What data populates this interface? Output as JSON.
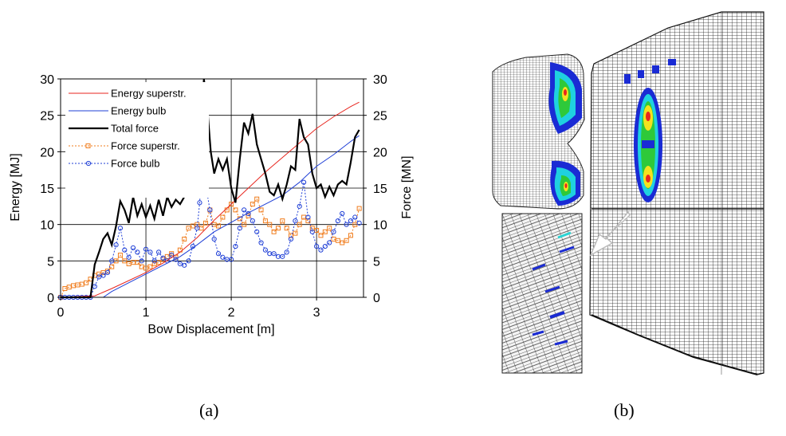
{
  "captions": {
    "a": "(a)",
    "b": "(b)"
  },
  "chart_data": {
    "type": "line",
    "xlabel": "Bow Displacement [m]",
    "ylabel": "Energy [MJ]",
    "y2label": "Force [MN]",
    "xlim": [
      0,
      3.55
    ],
    "ylim": [
      0,
      30
    ],
    "y2lim": [
      0,
      30
    ],
    "xticks": [
      0,
      1,
      2,
      3
    ],
    "yticks": [
      0,
      5,
      10,
      15,
      20,
      25,
      30
    ],
    "grid": true,
    "legend_position": "top-left",
    "series": [
      {
        "name": "Energy superstr.",
        "axis": "left",
        "color": "#e8261f",
        "style": "solid",
        "x": [
          0,
          0.4,
          0.6,
          0.8,
          1.0,
          1.2,
          1.4,
          1.6,
          1.8,
          2.0,
          2.2,
          2.4,
          2.6,
          2.8,
          3.0,
          3.2,
          3.4,
          3.5
        ],
        "y": [
          0,
          0.2,
          1.2,
          2.3,
          3.4,
          4.7,
          6.2,
          8.2,
          10.6,
          12.8,
          15.0,
          17.2,
          19.2,
          21.2,
          23.2,
          24.8,
          26.2,
          26.8
        ]
      },
      {
        "name": "Energy bulb",
        "axis": "left",
        "color": "#1f3fd6",
        "style": "solid",
        "x": [
          0,
          0.5,
          0.6,
          0.8,
          1.0,
          1.2,
          1.4,
          1.6,
          1.8,
          2.0,
          2.2,
          2.4,
          2.6,
          2.8,
          3.0,
          3.2,
          3.4,
          3.5
        ],
        "y": [
          0,
          0,
          0.8,
          2.0,
          3.2,
          4.4,
          5.6,
          7.2,
          9.0,
          10.3,
          11.6,
          12.8,
          14.0,
          15.8,
          18.0,
          19.6,
          21.4,
          22.2
        ]
      },
      {
        "name": "Total force",
        "axis": "right",
        "color": "#000000",
        "style": "solid",
        "x": [
          0,
          0.35,
          0.4,
          0.45,
          0.5,
          0.55,
          0.6,
          0.65,
          0.7,
          0.75,
          0.8,
          0.85,
          0.9,
          0.95,
          1.0,
          1.05,
          1.1,
          1.15,
          1.2,
          1.25,
          1.3,
          1.35,
          1.4,
          1.45,
          1.5,
          1.55,
          1.6,
          1.65,
          1.68,
          1.72,
          1.76,
          1.8,
          1.85,
          1.9,
          1.95,
          2.0,
          2.05,
          2.1,
          2.15,
          2.2,
          2.25,
          2.3,
          2.35,
          2.4,
          2.45,
          2.5,
          2.55,
          2.6,
          2.65,
          2.7,
          2.75,
          2.8,
          2.85,
          2.9,
          2.95,
          3.0,
          3.05,
          3.1,
          3.15,
          3.2,
          3.25,
          3.3,
          3.35,
          3.4,
          3.45,
          3.5
        ],
        "y": [
          0,
          0,
          4.5,
          6.2,
          8.0,
          8.8,
          7.2,
          9.8,
          13.2,
          12.0,
          10.2,
          13.8,
          11.2,
          12.8,
          11.0,
          12.6,
          10.8,
          13.4,
          11.2,
          13.8,
          12.4,
          13.4,
          12.8,
          13.8,
          14.2,
          14.6,
          17.8,
          24.0,
          30.0,
          26.0,
          20.0,
          17.0,
          19.0,
          17.5,
          19.0,
          15.0,
          13.0,
          19.0,
          24.0,
          22.5,
          25.2,
          21.0,
          19.0,
          17.0,
          14.5,
          14.0,
          15.5,
          13.5,
          15.5,
          18.0,
          17.5,
          24.5,
          22.0,
          21.0,
          17.0,
          15.0,
          15.5,
          13.8,
          15.2,
          14.0,
          15.5,
          16.0,
          15.5,
          18.5,
          22.0,
          23.0
        ]
      },
      {
        "name": "Force superstr.",
        "axis": "right",
        "color": "#f07d1e",
        "style": "dotted",
        "marker": "square",
        "x": [
          0,
          0.05,
          0.1,
          0.15,
          0.2,
          0.25,
          0.3,
          0.35,
          0.4,
          0.45,
          0.5,
          0.55,
          0.6,
          0.65,
          0.7,
          0.75,
          0.8,
          0.85,
          0.9,
          0.95,
          1.0,
          1.05,
          1.1,
          1.15,
          1.2,
          1.25,
          1.3,
          1.35,
          1.4,
          1.45,
          1.5,
          1.55,
          1.6,
          1.65,
          1.7,
          1.75,
          1.8,
          1.85,
          1.9,
          1.95,
          2.0,
          2.05,
          2.1,
          2.15,
          2.2,
          2.25,
          2.3,
          2.35,
          2.4,
          2.45,
          2.5,
          2.55,
          2.6,
          2.65,
          2.7,
          2.75,
          2.8,
          2.85,
          2.9,
          2.95,
          3.0,
          3.05,
          3.1,
          3.15,
          3.2,
          3.25,
          3.3,
          3.35,
          3.4,
          3.45,
          3.5
        ],
        "y": [
          0,
          1.2,
          1.4,
          1.6,
          1.7,
          1.8,
          2.0,
          2.5,
          3.0,
          3.2,
          3.4,
          3.6,
          4.2,
          5.0,
          5.8,
          5.0,
          4.6,
          4.8,
          4.8,
          4.2,
          4.0,
          4.2,
          4.6,
          4.8,
          5.2,
          5.6,
          6.0,
          5.5,
          6.5,
          8.0,
          9.5,
          9.8,
          10.0,
          9.5,
          10.2,
          12.0,
          10.0,
          9.8,
          11.0,
          12.0,
          12.8,
          12.0,
          10.8,
          10.0,
          11.2,
          12.8,
          13.5,
          12.0,
          10.5,
          10.0,
          9.0,
          9.5,
          10.5,
          9.5,
          8.5,
          8.8,
          10.0,
          11.0,
          10.5,
          9.5,
          9.2,
          8.5,
          9.0,
          9.5,
          8.0,
          7.8,
          7.5,
          7.8,
          8.5,
          10.0,
          12.2
        ]
      },
      {
        "name": "Force bulb",
        "axis": "right",
        "color": "#1f3fd6",
        "style": "dotted",
        "marker": "circle",
        "x": [
          0,
          0.05,
          0.1,
          0.15,
          0.2,
          0.25,
          0.3,
          0.35,
          0.4,
          0.45,
          0.5,
          0.55,
          0.6,
          0.65,
          0.7,
          0.75,
          0.8,
          0.85,
          0.9,
          0.95,
          1.0,
          1.05,
          1.1,
          1.15,
          1.2,
          1.25,
          1.3,
          1.35,
          1.4,
          1.45,
          1.5,
          1.55,
          1.6,
          1.63,
          1.66,
          1.7,
          1.75,
          1.8,
          1.85,
          1.9,
          1.95,
          2.0,
          2.05,
          2.1,
          2.15,
          2.2,
          2.25,
          2.3,
          2.35,
          2.4,
          2.45,
          2.5,
          2.55,
          2.6,
          2.65,
          2.7,
          2.75,
          2.8,
          2.85,
          2.9,
          2.95,
          3.0,
          3.05,
          3.1,
          3.15,
          3.2,
          3.25,
          3.3,
          3.35,
          3.4,
          3.45,
          3.5
        ],
        "y": [
          0,
          0,
          0,
          0,
          0,
          0,
          0,
          0,
          1.5,
          2.8,
          3.0,
          3.4,
          5.0,
          7.2,
          9.5,
          6.5,
          5.5,
          6.8,
          6.2,
          5.0,
          6.6,
          6.2,
          5.0,
          6.2,
          5.4,
          5.0,
          5.8,
          5.2,
          4.6,
          4.4,
          5.0,
          7.0,
          9.5,
          13.0,
          19.2,
          15.5,
          12.0,
          8.0,
          6.0,
          5.5,
          5.2,
          5.2,
          7.0,
          9.5,
          12.0,
          11.5,
          10.5,
          9.0,
          7.5,
          6.5,
          6.0,
          6.0,
          5.6,
          5.6,
          6.2,
          8.0,
          10.5,
          12.5,
          15.8,
          11.0,
          9.0,
          7.0,
          6.5,
          7.0,
          7.5,
          9.0,
          10.5,
          11.5,
          10.0,
          10.5,
          11.0,
          10.2
        ]
      }
    ]
  },
  "figure_b": {
    "contour_colors": [
      "#1a2bd4",
      "#1fd1e0",
      "#2ec93a",
      "#f4e21e",
      "#e8261f"
    ]
  }
}
